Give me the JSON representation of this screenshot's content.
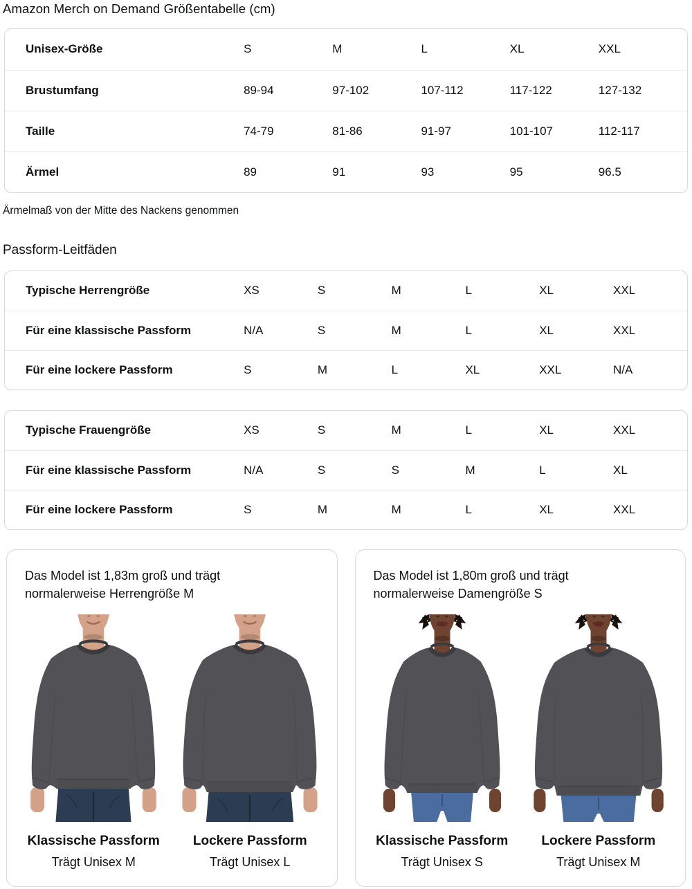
{
  "page": {
    "title": "Amazon Merch on Demand Größentabelle (cm)",
    "note": "Ärmelmaß von der Mitte des Nackens genommen",
    "fit_guides_title": "Passform-Leitfäden"
  },
  "size_table": {
    "rows": [
      {
        "label": "Unisex-Größe",
        "values": [
          "S",
          "M",
          "L",
          "XL",
          "XXL"
        ]
      },
      {
        "label": "Brustumfang",
        "values": [
          "89-94",
          "97-102",
          "107-112",
          "117-122",
          "127-132"
        ]
      },
      {
        "label": "Taille",
        "values": [
          "74-79",
          "81-86",
          "91-97",
          "101-107",
          "112-117"
        ]
      },
      {
        "label": "Ärmel",
        "values": [
          "89",
          "91",
          "93",
          "95",
          "96.5"
        ]
      }
    ]
  },
  "fit_tables": [
    {
      "rows": [
        {
          "label": "Typische Herrengröße",
          "values": [
            "XS",
            "S",
            "M",
            "L",
            "XL",
            "XXL"
          ]
        },
        {
          "label": "Für eine klassische Passform",
          "values": [
            "N/A",
            "S",
            "M",
            "L",
            "XL",
            "XXL"
          ]
        },
        {
          "label": "Für eine lockere Passform",
          "values": [
            "S",
            "M",
            "L",
            "XL",
            "XXL",
            "N/A"
          ]
        }
      ]
    },
    {
      "rows": [
        {
          "label": "Typische Frauengröße",
          "values": [
            "XS",
            "S",
            "M",
            "L",
            "XL",
            "XXL"
          ]
        },
        {
          "label": "Für eine klassische Passform",
          "values": [
            "N/A",
            "S",
            "S",
            "M",
            "L",
            "XL"
          ]
        },
        {
          "label": "Für eine lockere Passform",
          "values": [
            "S",
            "M",
            "M",
            "L",
            "XL",
            "XXL"
          ]
        }
      ]
    }
  ],
  "model_cards": [
    {
      "intro": "Das Model ist 1,83m groß und trägt normalerweise Herrengröße M",
      "figures": [
        {
          "gender": "male",
          "fit": "classic",
          "caption_title": "Klassische Passform",
          "caption_sub": "Trägt Unisex M"
        },
        {
          "gender": "male",
          "fit": "loose",
          "caption_title": "Lockere Passform",
          "caption_sub": "Trägt Unisex L"
        }
      ]
    },
    {
      "intro": "Das Model ist 1,80m groß und trägt normalerweise Damengröße S",
      "figures": [
        {
          "gender": "female",
          "fit": "classic",
          "caption_title": "Klassische Passform",
          "caption_sub": "Trägt Unisex S"
        },
        {
          "gender": "female",
          "fit": "loose",
          "caption_title": "Lockere Passform",
          "caption_sub": "Trägt Unisex M"
        }
      ]
    }
  ],
  "colors": {
    "text": "#0f1111",
    "table_border": "#d5d9d9",
    "row_separator": "#e7e7e7",
    "sweatshirt": "#525256",
    "sweatshirt_dark": "#3b3b3f",
    "male_skin": "#d3a289",
    "female_skin": "#6e4430",
    "male_jeans": "#2c3c52",
    "female_jeans": "#4a6c9e",
    "hair": "#17100d",
    "male_mouth": "#9c6a57",
    "female_lips": "#5f2b24"
  }
}
